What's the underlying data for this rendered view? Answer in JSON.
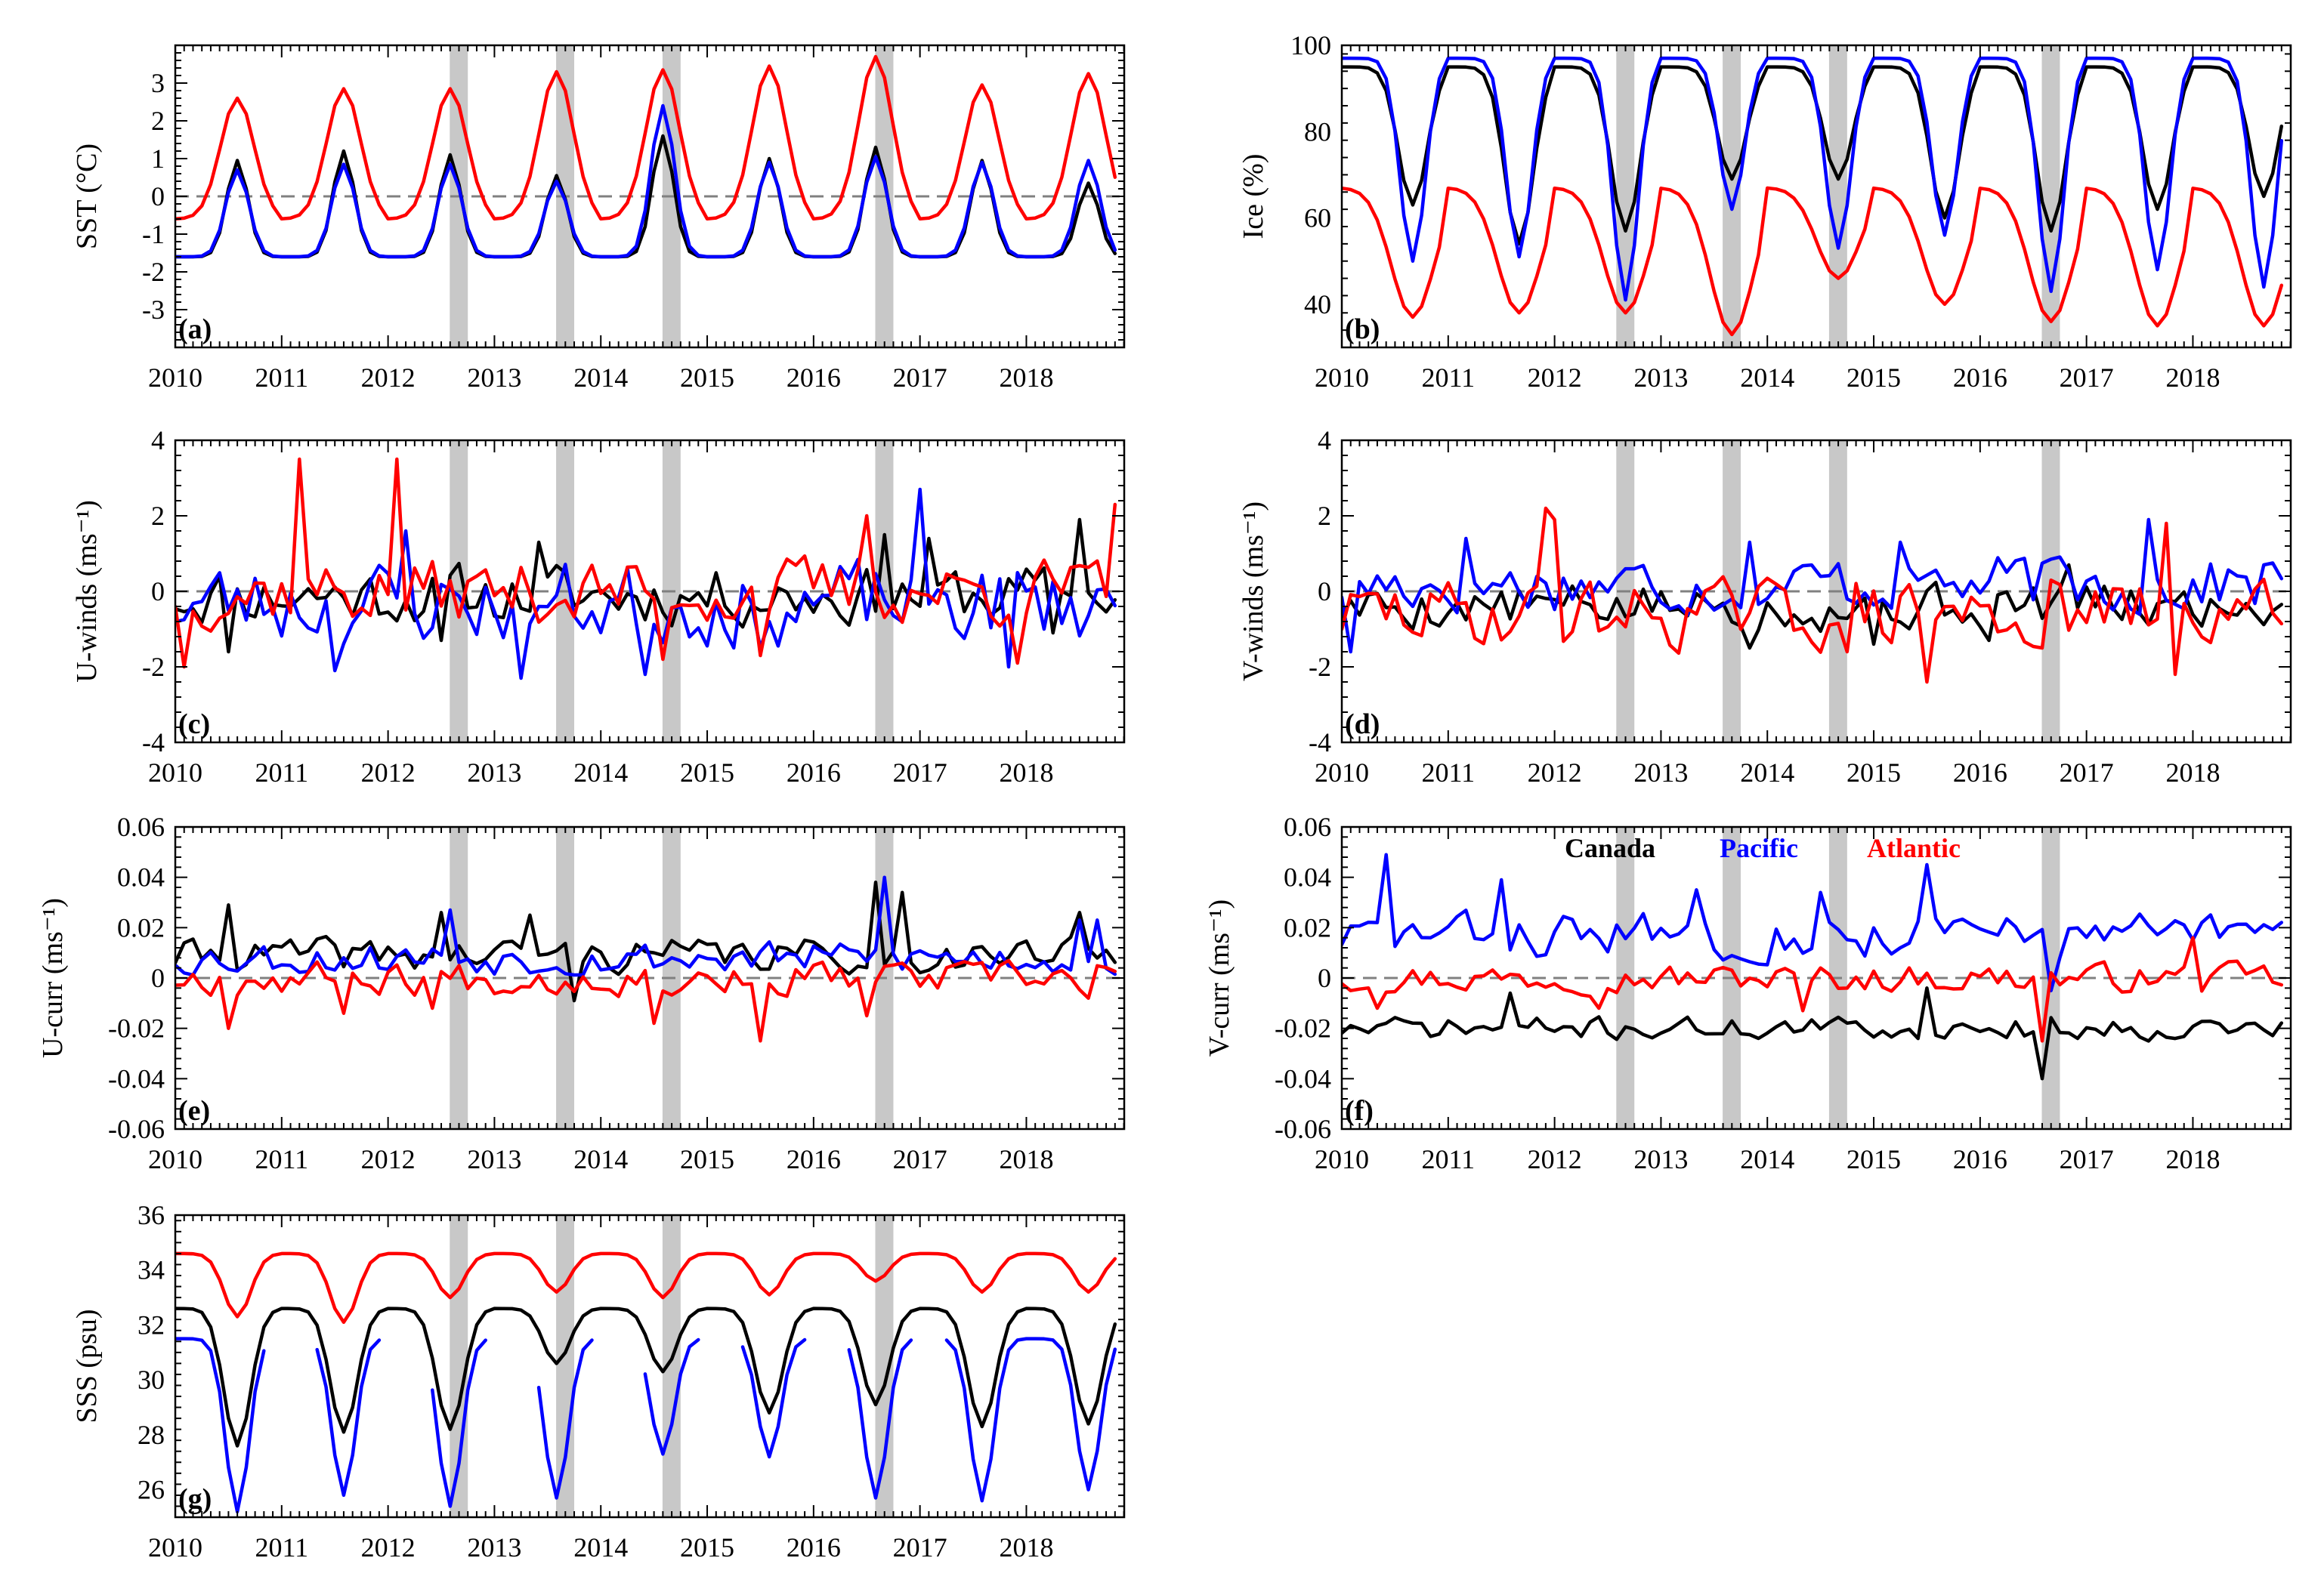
{
  "figure": {
    "legend": [
      {
        "label": "Canada",
        "color": "#000000"
      },
      {
        "label": "Pacific",
        "color": "#0000ff"
      },
      {
        "label": "Atlantic",
        "color": "#ff0000"
      }
    ],
    "shading_color": "#c8c8c8",
    "zero_line_color": "#808080",
    "shaded_periods": [
      [
        2012.58,
        2012.75
      ],
      [
        2013.58,
        2013.75
      ],
      [
        2014.58,
        2014.75
      ],
      [
        2016.58,
        2016.75
      ]
    ],
    "xlim": [
      2010,
      2018.92
    ],
    "xticks": [
      2010,
      2011,
      2012,
      2013,
      2014,
      2015,
      2016,
      2017,
      2018
    ]
  },
  "chart_data": [
    {
      "id": "a",
      "type": "line",
      "panel_label": "(a)",
      "ylabel": "SST (°C)",
      "ylim": [
        -4,
        4
      ],
      "yticks": [
        -3,
        -2,
        -1,
        0,
        1,
        2,
        3
      ],
      "zero_line": true,
      "series": [
        {
          "name": "Canada",
          "color": "#000000",
          "kind": "seasonal",
          "params": {
            "min": -1.6,
            "peaks": [
              0.95,
              1.2,
              1.1,
              0.55,
              1.6,
              1.0,
              1.3,
              0.95,
              0.35
            ],
            "peak_month": 7,
            "width": 1.2
          }
        },
        {
          "name": "Pacific",
          "color": "#0000ff",
          "kind": "seasonal",
          "params": {
            "min": -1.6,
            "peaks": [
              0.7,
              0.85,
              0.85,
              0.4,
              2.4,
              0.9,
              1.05,
              0.9,
              0.95
            ],
            "peak_month": 7,
            "width": 1.3
          }
        },
        {
          "name": "Atlantic",
          "color": "#ff0000",
          "kind": "seasonal",
          "params": {
            "min": -0.6,
            "peaks": [
              2.6,
              2.85,
              2.85,
              3.3,
              3.35,
              3.45,
              3.7,
              2.95,
              3.25
            ],
            "peak_month": 7,
            "width": 1.9
          }
        }
      ]
    },
    {
      "id": "b",
      "type": "line",
      "panel_label": "(b)",
      "ylabel": "Ice (%)",
      "ylim": [
        30,
        100
      ],
      "yticks": [
        40,
        60,
        80,
        100
      ],
      "zero_line": false,
      "series": [
        {
          "name": "Canada",
          "color": "#000000",
          "kind": "seasonal",
          "params": {
            "min": 95,
            "peaks": [
              63,
              54,
              57,
              69,
              69,
              60,
              57,
              62,
              65
            ],
            "peak_month": 8,
            "width": 1.6
          }
        },
        {
          "name": "Pacific",
          "color": "#0000ff",
          "kind": "seasonal",
          "params": {
            "min": 97,
            "peaks": [
              50,
              51,
              41,
              62,
              53,
              56,
              43,
              48,
              44
            ],
            "peak_month": 8,
            "width": 1.4
          }
        },
        {
          "name": "Atlantic",
          "color": "#ff0000",
          "kind": "seasonal",
          "params": {
            "min": 67,
            "peaks": [
              37,
              38,
              38,
              33,
              46,
              40,
              36,
              35,
              35
            ],
            "peak_month": 8,
            "width": 2.4
          }
        }
      ]
    },
    {
      "id": "c",
      "type": "line",
      "panel_label": "(c)",
      "ylabel": "U-winds (ms⁻¹)",
      "ylim": [
        -4,
        4
      ],
      "yticks": [
        -4,
        -2,
        0,
        2,
        4
      ],
      "zero_line": true,
      "series": [
        {
          "name": "Canada",
          "color": "#000000",
          "kind": "noise",
          "params": {
            "seed": 11,
            "mean": -0.1,
            "amp": 0.7,
            "spikes": [
              [
                6,
                -1.6
              ],
              [
                30,
                -1.3
              ],
              [
                41,
                1.3
              ],
              [
                80,
                1.5
              ],
              [
                85,
                1.4
              ],
              [
                99,
                -1.1
              ],
              [
                102,
                1.9
              ]
            ]
          }
        },
        {
          "name": "Pacific",
          "color": "#0000ff",
          "kind": "noise",
          "params": {
            "seed": 23,
            "mean": -0.3,
            "amp": 1.0,
            "spikes": [
              [
                18,
                -2.1
              ],
              [
                26,
                1.6
              ],
              [
                39,
                -2.3
              ],
              [
                53,
                -2.2
              ],
              [
                66,
                -1.5
              ],
              [
                84,
                2.7
              ],
              [
                94,
                -2.0
              ]
            ]
          }
        },
        {
          "name": "Atlantic",
          "color": "#ff0000",
          "kind": "noise",
          "params": {
            "seed": 37,
            "mean": 0.0,
            "amp": 0.8,
            "spikes": [
              [
                1,
                -2.0
              ],
              [
                14,
                3.5
              ],
              [
                25,
                3.5
              ],
              [
                55,
                -1.8
              ],
              [
                66,
                -1.7
              ],
              [
                78,
                2.0
              ],
              [
                95,
                -1.9
              ],
              [
                106,
                2.3
              ]
            ]
          }
        }
      ]
    },
    {
      "id": "d",
      "type": "line",
      "panel_label": "(d)",
      "ylabel": "V-winds (ms⁻¹)",
      "ylim": [
        -4,
        4
      ],
      "yticks": [
        -4,
        -2,
        0,
        2,
        4
      ],
      "zero_line": true,
      "series": [
        {
          "name": "Canada",
          "color": "#000000",
          "kind": "noise",
          "params": {
            "seed": 5,
            "mean": -0.4,
            "amp": 0.55,
            "spikes": [
              [
                46,
                -1.5
              ],
              [
                60,
                -1.4
              ],
              [
                73,
                -1.3
              ],
              [
                82,
                0.7
              ]
            ]
          }
        },
        {
          "name": "Pacific",
          "color": "#0000ff",
          "kind": "noise",
          "params": {
            "seed": 17,
            "mean": 0.2,
            "amp": 0.7,
            "spikes": [
              [
                1,
                -1.6
              ],
              [
                14,
                1.4
              ],
              [
                46,
                1.3
              ],
              [
                63,
                1.3
              ],
              [
                91,
                1.9
              ],
              [
                104,
                0.7
              ]
            ]
          }
        },
        {
          "name": "Atlantic",
          "color": "#ff0000",
          "kind": "noise",
          "params": {
            "seed": 29,
            "mean": -0.6,
            "amp": 0.8,
            "spikes": [
              [
                23,
                2.2
              ],
              [
                24,
                1.9
              ],
              [
                57,
                -1.6
              ],
              [
                66,
                -2.4
              ],
              [
                79,
                -1.5
              ],
              [
                93,
                1.8
              ],
              [
                94,
                -2.2
              ]
            ]
          }
        }
      ]
    },
    {
      "id": "e",
      "type": "line",
      "panel_label": "(e)",
      "ylabel": "U-curr (ms⁻¹)",
      "ylim": [
        -0.06,
        0.06
      ],
      "yticks": [
        -0.06,
        -0.04,
        -0.02,
        0,
        0.02,
        0.04,
        0.06
      ],
      "zero_line": true,
      "series": [
        {
          "name": "Canada",
          "color": "#000000",
          "kind": "noise",
          "params": {
            "seed": 41,
            "mean": 0.009,
            "amp": 0.006,
            "spikes": [
              [
                6,
                0.029
              ],
              [
                30,
                0.026
              ],
              [
                40,
                0.025
              ],
              [
                45,
                -0.009
              ],
              [
                79,
                0.038
              ],
              [
                82,
                0.034
              ],
              [
                102,
                0.026
              ]
            ]
          }
        },
        {
          "name": "Pacific",
          "color": "#0000ff",
          "kind": "noise",
          "params": {
            "seed": 53,
            "mean": 0.008,
            "amp": 0.006,
            "spikes": [
              [
                31,
                0.027
              ],
              [
                80,
                0.04
              ],
              [
                102,
                0.023
              ],
              [
                104,
                0.023
              ]
            ]
          }
        },
        {
          "name": "Atlantic",
          "color": "#ff0000",
          "kind": "noise",
          "params": {
            "seed": 67,
            "mean": 0.0,
            "amp": 0.006,
            "spikes": [
              [
                6,
                -0.02
              ],
              [
                19,
                -0.014
              ],
              [
                29,
                -0.012
              ],
              [
                54,
                -0.018
              ],
              [
                66,
                -0.025
              ],
              [
                78,
                -0.015
              ],
              [
                103,
                -0.008
              ]
            ]
          }
        }
      ]
    },
    {
      "id": "f",
      "type": "line",
      "panel_label": "(f)",
      "ylabel": "V-curr (ms⁻¹)",
      "ylim": [
        -0.06,
        0.06
      ],
      "yticks": [
        -0.06,
        -0.04,
        -0.02,
        0,
        0.02,
        0.04,
        0.06
      ],
      "zero_line": true,
      "has_legend": true,
      "series": [
        {
          "name": "Canada",
          "color": "#000000",
          "kind": "noise",
          "params": {
            "seed": 71,
            "mean": -0.02,
            "amp": 0.004,
            "spikes": [
              [
                19,
                -0.006
              ],
              [
                66,
                -0.004
              ],
              [
                79,
                -0.04
              ]
            ]
          }
        },
        {
          "name": "Pacific",
          "color": "#0000ff",
          "kind": "noise",
          "params": {
            "seed": 83,
            "mean": 0.017,
            "amp": 0.008,
            "spikes": [
              [
                5,
                0.049
              ],
              [
                18,
                0.039
              ],
              [
                40,
                0.035
              ],
              [
                54,
                0.034
              ],
              [
                66,
                0.045
              ],
              [
                80,
                -0.005
              ]
            ]
          }
        },
        {
          "name": "Atlantic",
          "color": "#ff0000",
          "kind": "noise",
          "params": {
            "seed": 97,
            "mean": 0.0,
            "amp": 0.005,
            "spikes": [
              [
                4,
                -0.012
              ],
              [
                29,
                -0.012
              ],
              [
                52,
                -0.013
              ],
              [
                79,
                -0.025
              ],
              [
                96,
                0.016
              ]
            ]
          }
        }
      ]
    },
    {
      "id": "g",
      "type": "line",
      "panel_label": "(g)",
      "ylabel": "SSS (psu)",
      "ylim": [
        25,
        36
      ],
      "yticks": [
        26,
        28,
        30,
        32,
        34,
        36
      ],
      "zero_line": false,
      "series": [
        {
          "name": "Canada",
          "color": "#000000",
          "kind": "seasonal",
          "params": {
            "min": 32.6,
            "peaks": [
              27.6,
              28.1,
              28.2,
              30.6,
              30.3,
              28.8,
              29.1,
              28.3,
              28.4
            ],
            "peak_month": 7,
            "width": 1.5
          }
        },
        {
          "name": "Pacific",
          "color": "#0000ff",
          "kind": "seasonal",
          "params": {
            "min": 31.5,
            "peaks": [
              25.2,
              25.8,
              25.4,
              25.7,
              27.3,
              27.2,
              25.7,
              25.6,
              26.0
            ],
            "peak_month": 7,
            "width": 1.3,
            "gaps": [
              [
                11,
                15
              ],
              [
                24,
                28
              ],
              [
                36,
                40
              ],
              [
                48,
                52
              ],
              [
                60,
                63
              ],
              [
                72,
                75
              ],
              [
                84,
                86
              ]
            ]
          }
        },
        {
          "name": "Atlantic",
          "color": "#ff0000",
          "kind": "seasonal",
          "params": {
            "min": 34.6,
            "peaks": [
              32.3,
              32.1,
              33.0,
              33.2,
              33.0,
              33.1,
              33.6,
              33.2,
              33.2
            ],
            "peak_month": 7,
            "width": 1.5
          }
        }
      ]
    }
  ]
}
